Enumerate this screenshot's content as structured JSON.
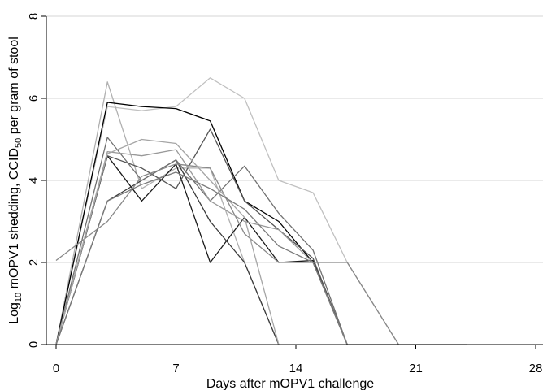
{
  "chart_data": {
    "type": "line",
    "xlabel": "Days after mOPV1 challenge",
    "ylabel_parts": [
      {
        "text": "Log",
        "sub": false
      },
      {
        "text": "10",
        "sub": true
      },
      {
        "text": " mOPV1 shedding, CCID",
        "sub": false
      },
      {
        "text": "50",
        "sub": true
      },
      {
        "text": " per gram of stool",
        "sub": false
      }
    ],
    "xlim": [
      0,
      28
    ],
    "ylim": [
      0,
      8
    ],
    "xticks": [
      0,
      7,
      14,
      21,
      28
    ],
    "yticks": [
      0,
      2,
      4,
      6,
      8
    ],
    "grid": true,
    "series": [
      {
        "color": "#c0c0c0",
        "x": [
          0,
          3,
          5,
          7,
          9,
          11,
          13,
          15,
          17,
          20
        ],
        "y": [
          0,
          5.8,
          5.7,
          5.8,
          6.5,
          6.0,
          4.0,
          3.7,
          2.0,
          0
        ]
      },
      {
        "color": "#b0b0b0",
        "x": [
          0,
          3,
          5,
          7,
          9,
          11,
          13
        ],
        "y": [
          0,
          6.4,
          3.8,
          4.3,
          4.3,
          2.0,
          0
        ]
      },
      {
        "color": "#000000",
        "x": [
          0,
          3,
          5,
          7,
          9,
          11,
          13,
          15,
          17
        ],
        "y": [
          0,
          5.9,
          5.8,
          5.75,
          5.45,
          3.5,
          3.0,
          2.0,
          0
        ]
      },
      {
        "color": "#1a1a1a",
        "x": [
          0,
          3,
          5,
          7,
          9,
          11,
          13,
          15,
          17
        ],
        "y": [
          0,
          4.6,
          3.5,
          4.4,
          2.0,
          3.1,
          2.0,
          2.05,
          0
        ]
      },
      {
        "color": "#3a3a3a",
        "x": [
          0,
          3,
          5,
          7,
          9,
          11,
          13
        ],
        "y": [
          0,
          3.5,
          4.0,
          4.5,
          3.0,
          2.0,
          0
        ]
      },
      {
        "color": "#555555",
        "x": [
          0,
          3,
          5,
          7,
          9,
          11,
          13,
          15,
          17
        ],
        "y": [
          0,
          4.6,
          4.3,
          3.8,
          5.25,
          3.5,
          2.8,
          2.1,
          0
        ]
      },
      {
        "color": "#707070",
        "x": [
          0,
          3,
          5,
          7,
          9,
          11,
          13,
          15,
          17
        ],
        "y": [
          0,
          5.05,
          4.0,
          4.5,
          3.5,
          4.35,
          3.2,
          2.3,
          0
        ]
      },
      {
        "color": "#888888",
        "x": [
          0,
          3,
          5,
          7,
          9,
          11,
          13,
          15,
          17,
          20
        ],
        "y": [
          2.05,
          3.0,
          4.1,
          4.4,
          4.3,
          2.7,
          2.0,
          2.0,
          2.0,
          0
        ]
      },
      {
        "color": "#999999",
        "x": [
          0,
          3,
          5,
          7,
          9,
          11,
          13,
          15,
          17
        ],
        "y": [
          0,
          4.7,
          4.6,
          4.75,
          3.5,
          3.0,
          2.8,
          2.0,
          0
        ]
      },
      {
        "color": "#a5a5a5",
        "x": [
          0,
          3,
          5,
          7,
          9,
          11,
          13
        ],
        "y": [
          0,
          4.65,
          5.0,
          4.9,
          4.0,
          3.1,
          0
        ]
      },
      {
        "color": "#7a7a7a",
        "x": [
          0,
          3,
          5,
          7,
          9,
          11,
          13,
          15,
          17,
          20,
          24
        ],
        "y": [
          0,
          3.5,
          3.9,
          4.2,
          3.8,
          3.3,
          2.4,
          2.0,
          0,
          0,
          0
        ]
      }
    ]
  }
}
